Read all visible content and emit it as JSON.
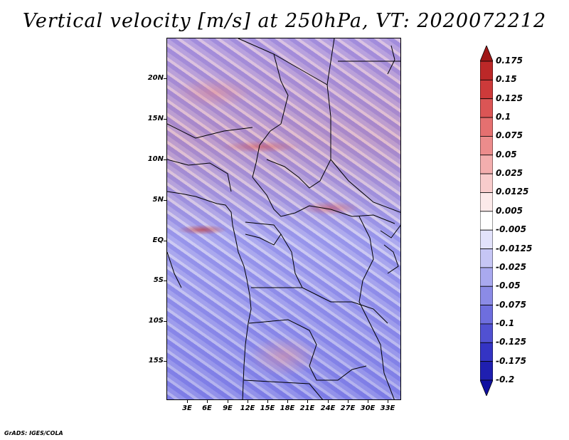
{
  "title": "Vertical velocity [m/s] at 250hPa, VT: 2020072212",
  "footer": "GrADS: IGES/COLA",
  "map": {
    "lat_labels": [
      "20N",
      "15N",
      "10N",
      "5N",
      "EQ",
      "5S",
      "10S",
      "15S"
    ],
    "lon_labels": [
      "3E",
      "6E",
      "9E",
      "12E",
      "15E",
      "18E",
      "21E",
      "24E",
      "27E",
      "30E",
      "33E"
    ]
  },
  "colorbar": {
    "labels": [
      "0.175",
      "0.15",
      "0.125",
      "0.1",
      "0.075",
      "0.05",
      "0.025",
      "0.0125",
      "0.005",
      "-0.005",
      "-0.0125",
      "-0.025",
      "-0.05",
      "-0.075",
      "-0.1",
      "-0.125",
      "-0.175",
      "-0.2"
    ],
    "colors": [
      "#a01818",
      "#bc2828",
      "#cd3a3a",
      "#db5555",
      "#e57070",
      "#ec8c8c",
      "#f3aeae",
      "#f8cccc",
      "#fceaea",
      "#ffffff",
      "#e2e2fb",
      "#c6c6f5",
      "#a9a9ef",
      "#8b8be6",
      "#6e6ede",
      "#5151d2",
      "#3434c4",
      "#1f1fb0",
      "#1010a0"
    ]
  }
}
